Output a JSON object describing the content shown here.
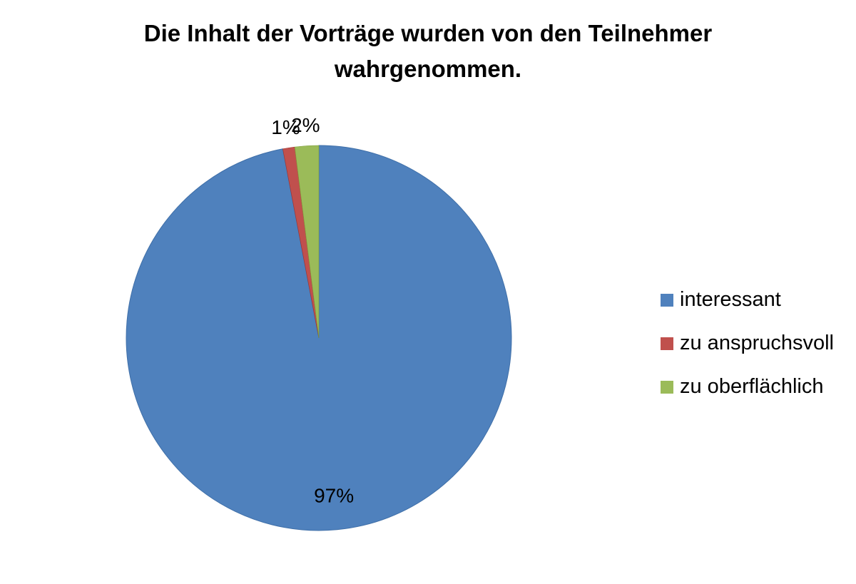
{
  "chart_data": {
    "type": "pie",
    "title": "Die Inhalt der Vorträge wurden von den Teilnehmer wahrgenommen.",
    "categories": [
      "interessant",
      "zu anspruchsvoll",
      "zu oberflächlich"
    ],
    "values": [
      97,
      1,
      2
    ],
    "data_labels": [
      "97%",
      "1%",
      "2%"
    ],
    "colors": [
      "#4F81BD",
      "#C0504D",
      "#9BBB59"
    ],
    "legend_position": "right",
    "start_angle": "12 o'clock, clockwise"
  }
}
